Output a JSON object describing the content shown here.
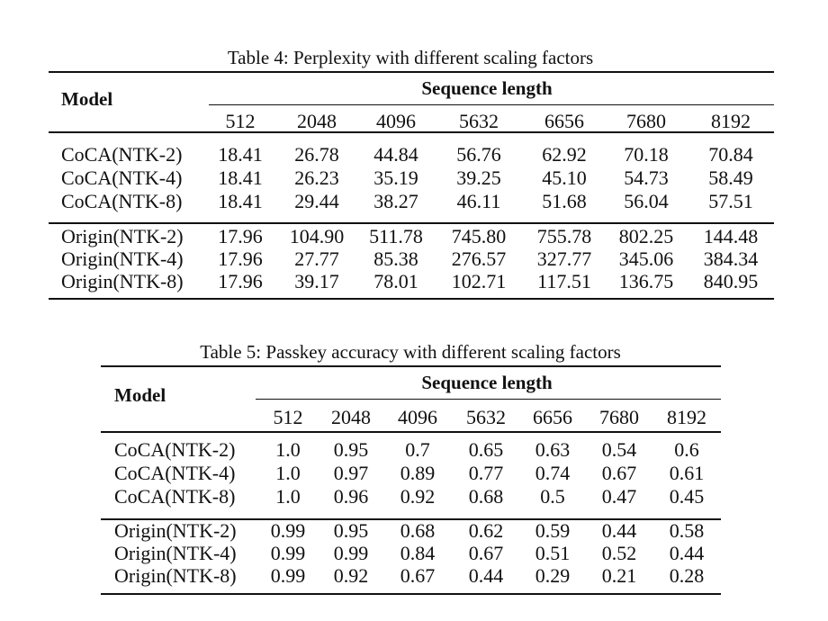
{
  "tables": [
    {
      "caption": "Table 4: Perplexity with different scaling factors",
      "model_header": "Model",
      "group_header": "Sequence length",
      "columns": [
        "512",
        "2048",
        "4096",
        "5632",
        "6656",
        "7680",
        "8192"
      ],
      "groups": [
        [
          {
            "label": "CoCA(NTK-2)",
            "values": [
              "18.41",
              "26.78",
              "44.84",
              "56.76",
              "62.92",
              "70.18",
              "70.84"
            ]
          },
          {
            "label": "CoCA(NTK-4)",
            "values": [
              "18.41",
              "26.23",
              "35.19",
              "39.25",
              "45.10",
              "54.73",
              "58.49"
            ]
          },
          {
            "label": "CoCA(NTK-8)",
            "values": [
              "18.41",
              "29.44",
              "38.27",
              "46.11",
              "51.68",
              "56.04",
              "57.51"
            ]
          }
        ],
        [
          {
            "label": "Origin(NTK-2)",
            "values": [
              "17.96",
              "104.90",
              "511.78",
              "745.80",
              "755.78",
              "802.25",
              "144.48"
            ]
          },
          {
            "label": "Origin(NTK-4)",
            "values": [
              "17.96",
              "27.77",
              "85.38",
              "276.57",
              "327.77",
              "345.06",
              "384.34"
            ]
          },
          {
            "label": "Origin(NTK-8)",
            "values": [
              "17.96",
              "39.17",
              "78.01",
              "102.71",
              "117.51",
              "136.75",
              "840.95"
            ]
          }
        ]
      ]
    },
    {
      "caption": "Table 5: Passkey accuracy with different scaling factors",
      "model_header": "Model",
      "group_header": "Sequence length",
      "columns": [
        "512",
        "2048",
        "4096",
        "5632",
        "6656",
        "7680",
        "8192"
      ],
      "groups": [
        [
          {
            "label": "CoCA(NTK-2)",
            "values": [
              "1.0",
              "0.95",
              "0.7",
              "0.65",
              "0.63",
              "0.54",
              "0.6"
            ]
          },
          {
            "label": "CoCA(NTK-4)",
            "values": [
              "1.0",
              "0.97",
              "0.89",
              "0.77",
              "0.74",
              "0.67",
              "0.61"
            ]
          },
          {
            "label": "CoCA(NTK-8)",
            "values": [
              "1.0",
              "0.96",
              "0.92",
              "0.68",
              "0.5",
              "0.47",
              "0.45"
            ]
          }
        ],
        [
          {
            "label": "Origin(NTK-2)",
            "values": [
              "0.99",
              "0.95",
              "0.68",
              "0.62",
              "0.59",
              "0.44",
              "0.58"
            ]
          },
          {
            "label": "Origin(NTK-4)",
            "values": [
              "0.99",
              "0.99",
              "0.84",
              "0.67",
              "0.51",
              "0.52",
              "0.44"
            ]
          },
          {
            "label": "Origin(NTK-8)",
            "values": [
              "0.99",
              "0.92",
              "0.67",
              "0.44",
              "0.29",
              "0.21",
              "0.28"
            ]
          }
        ]
      ]
    }
  ]
}
